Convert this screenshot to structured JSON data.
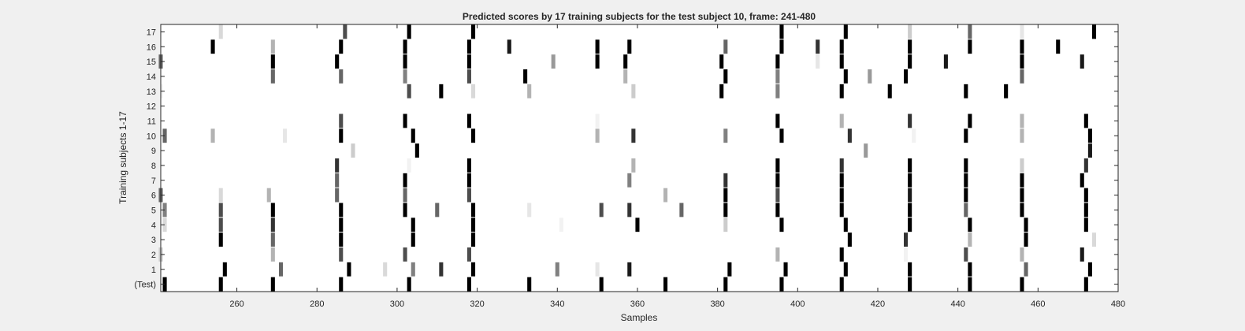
{
  "chart_data": {
    "type": "heatmap",
    "title": "Predicted scores by 17 training subjects for the test subject 10, frame: 241-480",
    "xlabel": "Samples",
    "ylabel": "Training subjects 1-17",
    "xlim": [
      241,
      480
    ],
    "x_ticks": [
      "260",
      "280",
      "300",
      "320",
      "340",
      "360",
      "380",
      "400",
      "420",
      "440",
      "460",
      "480"
    ],
    "rows": [
      "(Test)",
      "1",
      "2",
      "3",
      "4",
      "5",
      "6",
      "7",
      "8",
      "9",
      "10",
      "11",
      "12",
      "13",
      "14",
      "15",
      "16",
      "17"
    ],
    "colormap": "white-to-black",
    "grid": false,
    "legend": "none",
    "marks": {
      "(Test)": [
        [
          242,
          1
        ],
        [
          256,
          1
        ],
        [
          269,
          1
        ],
        [
          286,
          1
        ],
        [
          303,
          1
        ],
        [
          318,
          1
        ],
        [
          333,
          1
        ],
        [
          351,
          1
        ],
        [
          367,
          1
        ],
        [
          382,
          1
        ],
        [
          396,
          1
        ],
        [
          411,
          1
        ],
        [
          428,
          1
        ],
        [
          443,
          1
        ],
        [
          456,
          1
        ],
        [
          472,
          1
        ]
      ],
      "1": [
        [
          257,
          1
        ],
        [
          271,
          0.6
        ],
        [
          288,
          1
        ],
        [
          297,
          0.15
        ],
        [
          304,
          0.5
        ],
        [
          311,
          0.8
        ],
        [
          319,
          1
        ],
        [
          340,
          0.5
        ],
        [
          350,
          0.1
        ],
        [
          358,
          0.9
        ],
        [
          383,
          1
        ],
        [
          397,
          1
        ],
        [
          412,
          1
        ],
        [
          428,
          1
        ],
        [
          443,
          1
        ],
        [
          457,
          0.6
        ],
        [
          473,
          1
        ]
      ],
      "2": [
        [
          241,
          0.2
        ],
        [
          269,
          0.3
        ],
        [
          286,
          0.7
        ],
        [
          302,
          0.7
        ],
        [
          318,
          0.7
        ],
        [
          395,
          0.3
        ],
        [
          411,
          1
        ],
        [
          427,
          0.05
        ],
        [
          442,
          0.7
        ],
        [
          456,
          0.3
        ],
        [
          471,
          0.9
        ]
      ],
      "3": [
        [
          256,
          1
        ],
        [
          269,
          0.6
        ],
        [
          286,
          1
        ],
        [
          304,
          1
        ],
        [
          319,
          1
        ],
        [
          413,
          1
        ],
        [
          427,
          0.8
        ],
        [
          443,
          0.3
        ],
        [
          457,
          1
        ],
        [
          474,
          0.15
        ]
      ],
      "4": [
        [
          242,
          0.15
        ],
        [
          256,
          0.7
        ],
        [
          269,
          0.8
        ],
        [
          286,
          1
        ],
        [
          304,
          1
        ],
        [
          319,
          1
        ],
        [
          341,
          0.05
        ],
        [
          360,
          1
        ],
        [
          382,
          0.2
        ],
        [
          396,
          1
        ],
        [
          412,
          1
        ],
        [
          428,
          1
        ],
        [
          443,
          1
        ],
        [
          457,
          1
        ],
        [
          472,
          1
        ]
      ],
      "5": [
        [
          242,
          0.5
        ],
        [
          256,
          0.7
        ],
        [
          269,
          1
        ],
        [
          286,
          1
        ],
        [
          302,
          1
        ],
        [
          310,
          0.6
        ],
        [
          319,
          1
        ],
        [
          333,
          0.1
        ],
        [
          351,
          0.7
        ],
        [
          358,
          0.8
        ],
        [
          371,
          0.6
        ],
        [
          382,
          1
        ],
        [
          395,
          1
        ],
        [
          411,
          1
        ],
        [
          428,
          1
        ],
        [
          442,
          0.6
        ],
        [
          456,
          1
        ],
        [
          472,
          1
        ]
      ],
      "6": [
        [
          241,
          0.6
        ],
        [
          256,
          0.15
        ],
        [
          268,
          0.3
        ],
        [
          285,
          0.6
        ],
        [
          302,
          0.6
        ],
        [
          318,
          0.7
        ],
        [
          367,
          0.3
        ],
        [
          382,
          1
        ],
        [
          395,
          0.7
        ],
        [
          411,
          1
        ],
        [
          428,
          0.9
        ],
        [
          442,
          1
        ],
        [
          456,
          1
        ],
        [
          472,
          1
        ]
      ],
      "7": [
        [
          285,
          0.6
        ],
        [
          302,
          1
        ],
        [
          318,
          1
        ],
        [
          358,
          0.5
        ],
        [
          382,
          0.8
        ],
        [
          395,
          1
        ],
        [
          411,
          1
        ],
        [
          428,
          1
        ],
        [
          442,
          1
        ],
        [
          456,
          1
        ],
        [
          471,
          1
        ]
      ],
      "8": [
        [
          285,
          0.8
        ],
        [
          303,
          0.05
        ],
        [
          318,
          1
        ],
        [
          359,
          0.3
        ],
        [
          395,
          1
        ],
        [
          411,
          0.8
        ],
        [
          428,
          1
        ],
        [
          442,
          1
        ],
        [
          456,
          0.2
        ],
        [
          472,
          0.8
        ]
      ],
      "9": [
        [
          289,
          0.2
        ],
        [
          305,
          1
        ],
        [
          417,
          0.4
        ],
        [
          473,
          0.9
        ]
      ],
      "10": [
        [
          242,
          0.6
        ],
        [
          254,
          0.3
        ],
        [
          272,
          0.1
        ],
        [
          286,
          1
        ],
        [
          304,
          1
        ],
        [
          319,
          1
        ],
        [
          350,
          0.3
        ],
        [
          359,
          0.8
        ],
        [
          382,
          0.5
        ],
        [
          396,
          1
        ],
        [
          413,
          0.8
        ],
        [
          429,
          0.05
        ],
        [
          442,
          1
        ],
        [
          456,
          0.3
        ],
        [
          473,
          1
        ]
      ],
      "11": [
        [
          286,
          0.7
        ],
        [
          302,
          1
        ],
        [
          318,
          1
        ],
        [
          350,
          0.05
        ],
        [
          395,
          1
        ],
        [
          411,
          0.3
        ],
        [
          428,
          0.8
        ],
        [
          443,
          1
        ],
        [
          456,
          0.3
        ],
        [
          472,
          1
        ]
      ],
      "12": [],
      "13": [
        [
          241,
          0.05
        ],
        [
          303,
          0.7
        ],
        [
          311,
          1
        ],
        [
          319,
          0.15
        ],
        [
          333,
          0.3
        ],
        [
          359,
          0.2
        ],
        [
          381,
          1
        ],
        [
          395,
          0.5
        ],
        [
          411,
          1
        ],
        [
          423,
          1
        ],
        [
          442,
          1
        ],
        [
          452,
          1
        ]
      ],
      "14": [
        [
          269,
          0.6
        ],
        [
          286,
          0.6
        ],
        [
          302,
          0.5
        ],
        [
          318,
          0.7
        ],
        [
          332,
          1
        ],
        [
          357,
          0.3
        ],
        [
          382,
          1
        ],
        [
          395,
          0.5
        ],
        [
          412,
          1
        ],
        [
          418,
          0.4
        ],
        [
          427,
          1
        ],
        [
          456,
          0.6
        ]
      ],
      "15": [
        [
          241,
          0.6
        ],
        [
          269,
          1
        ],
        [
          285,
          1
        ],
        [
          302,
          1
        ],
        [
          318,
          1
        ],
        [
          339,
          0.4
        ],
        [
          350,
          1
        ],
        [
          357,
          1
        ],
        [
          381,
          1
        ],
        [
          395,
          1
        ],
        [
          405,
          0.1
        ],
        [
          411,
          1
        ],
        [
          428,
          1
        ],
        [
          437,
          0.9
        ],
        [
          456,
          1
        ],
        [
          471,
          0.9
        ]
      ],
      "16": [
        [
          254,
          1
        ],
        [
          269,
          0.3
        ],
        [
          286,
          1
        ],
        [
          302,
          1
        ],
        [
          318,
          1
        ],
        [
          328,
          0.9
        ],
        [
          350,
          1
        ],
        [
          358,
          1
        ],
        [
          382,
          0.6
        ],
        [
          396,
          1
        ],
        [
          405,
          0.8
        ],
        [
          411,
          1
        ],
        [
          428,
          1
        ],
        [
          443,
          1
        ],
        [
          456,
          1
        ],
        [
          465,
          1
        ]
      ],
      "17": [
        [
          256,
          0.15
        ],
        [
          287,
          0.7
        ],
        [
          303,
          1
        ],
        [
          319,
          1
        ],
        [
          396,
          1
        ],
        [
          412,
          1
        ],
        [
          428,
          0.2
        ],
        [
          443,
          0.6
        ],
        [
          456,
          0.1
        ],
        [
          474,
          1
        ]
      ]
    }
  }
}
